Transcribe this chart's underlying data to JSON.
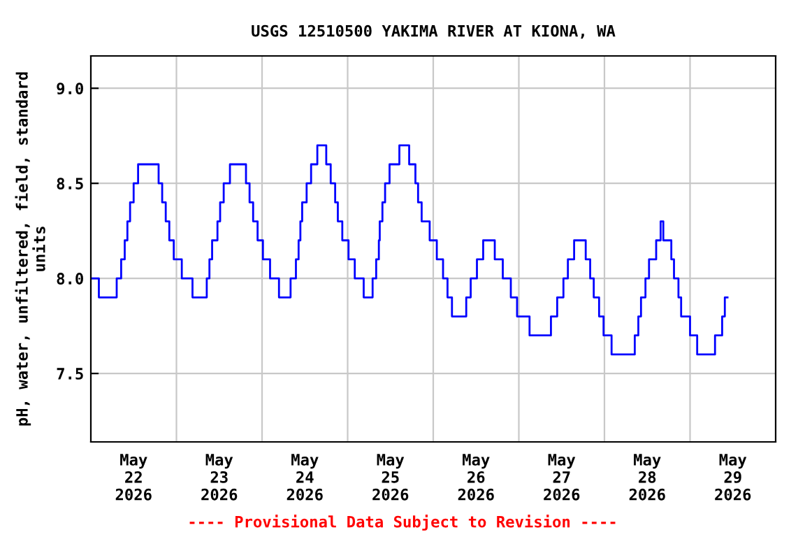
{
  "chart_data": {
    "type": "step",
    "title": "USGS 12510500 YAKIMA RIVER AT KIONA, WA",
    "ylabel": "pH, water, unfiltered, field, standard\nunits",
    "annotations": [
      "---- Provisional Data Subject to Revision ----"
    ],
    "x": [
      "2026-05-22T00:00",
      "2026-05-22T02:15",
      "2026-05-22T07:15",
      "2026-05-22T08:30",
      "2026-05-22T09:30",
      "2026-05-22T10:15",
      "2026-05-22T11:00",
      "2026-05-22T12:00",
      "2026-05-22T13:15",
      "2026-05-22T19:00",
      "2026-05-22T20:00",
      "2026-05-22T21:00",
      "2026-05-22T22:00",
      "2026-05-22T23:15",
      "2026-05-23T01:30",
      "2026-05-23T04:30",
      "2026-05-23T08:30",
      "2026-05-23T09:15",
      "2026-05-23T10:00",
      "2026-05-23T11:30",
      "2026-05-23T12:15",
      "2026-05-23T13:15",
      "2026-05-23T15:00",
      "2026-05-23T19:30",
      "2026-05-23T20:30",
      "2026-05-23T21:30",
      "2026-05-23T22:45",
      "2026-05-24T00:15",
      "2026-05-24T02:15",
      "2026-05-24T04:45",
      "2026-05-24T08:00",
      "2026-05-24T09:30",
      "2026-05-24T10:15",
      "2026-05-24T10:45",
      "2026-05-24T11:15",
      "2026-05-24T12:30",
      "2026-05-24T13:45",
      "2026-05-24T15:30",
      "2026-05-24T18:00",
      "2026-05-24T19:15",
      "2026-05-24T20:30",
      "2026-05-24T21:15",
      "2026-05-24T22:30",
      "2026-05-25T00:15",
      "2026-05-25T02:00",
      "2026-05-25T04:30",
      "2026-05-25T07:00",
      "2026-05-25T08:00",
      "2026-05-25T08:45",
      "2026-05-25T09:00",
      "2026-05-25T09:45",
      "2026-05-25T10:30",
      "2026-05-25T11:45",
      "2026-05-25T14:30",
      "2026-05-25T17:15",
      "2026-05-25T19:00",
      "2026-05-25T19:45",
      "2026-05-25T20:45",
      "2026-05-25T23:00",
      "2026-05-26T01:00",
      "2026-05-26T02:45",
      "2026-05-26T04:00",
      "2026-05-26T05:15",
      "2026-05-26T09:15",
      "2026-05-26T10:30",
      "2026-05-26T12:15",
      "2026-05-26T14:00",
      "2026-05-26T17:15",
      "2026-05-26T19:30",
      "2026-05-26T21:45",
      "2026-05-26T23:30",
      "2026-05-27T03:00",
      "2026-05-27T09:00",
      "2026-05-27T10:45",
      "2026-05-27T12:30",
      "2026-05-27T13:45",
      "2026-05-27T15:30",
      "2026-05-27T18:45",
      "2026-05-27T20:00",
      "2026-05-27T21:00",
      "2026-05-27T22:30",
      "2026-05-27T23:45",
      "2026-05-28T02:00",
      "2026-05-28T08:30",
      "2026-05-28T09:30",
      "2026-05-28T10:15",
      "2026-05-28T11:30",
      "2026-05-28T12:30",
      "2026-05-28T14:30",
      "2026-05-28T15:45",
      "2026-05-28T16:30",
      "2026-05-28T18:45",
      "2026-05-28T19:30",
      "2026-05-28T20:45",
      "2026-05-28T21:30",
      "2026-05-29T00:00",
      "2026-05-29T02:00",
      "2026-05-29T07:00",
      "2026-05-29T09:00",
      "2026-05-29T09:45",
      "2026-05-29T10:30"
    ],
    "series": [
      {
        "color": "#0000ff",
        "values": [
          8.0,
          7.9,
          8.0,
          8.1,
          8.2,
          8.3,
          8.4,
          8.5,
          8.6,
          8.5,
          8.4,
          8.3,
          8.2,
          8.1,
          8.0,
          7.9,
          8.0,
          8.1,
          8.2,
          8.3,
          8.4,
          8.5,
          8.6,
          8.5,
          8.4,
          8.3,
          8.2,
          8.1,
          8.0,
          7.9,
          8.0,
          8.1,
          8.2,
          8.3,
          8.4,
          8.5,
          8.6,
          8.7,
          8.6,
          8.5,
          8.4,
          8.3,
          8.2,
          8.1,
          8.0,
          7.9,
          8.0,
          8.1,
          8.2,
          8.3,
          8.4,
          8.5,
          8.6,
          8.7,
          8.6,
          8.5,
          8.4,
          8.3,
          8.2,
          8.1,
          8.0,
          7.9,
          7.8,
          7.9,
          8.0,
          8.1,
          8.2,
          8.1,
          8.0,
          7.9,
          7.8,
          7.7,
          7.8,
          7.9,
          8.0,
          8.1,
          8.2,
          8.1,
          8.0,
          7.9,
          7.8,
          7.7,
          7.6,
          7.7,
          7.8,
          7.9,
          8.0,
          8.1,
          8.2,
          8.3,
          8.2,
          8.1,
          8.0,
          7.9,
          7.8,
          7.7,
          7.6,
          7.7,
          7.8,
          7.9,
          7.9
        ]
      }
    ],
    "xlim": [
      "2026-05-22T00:00",
      "2026-05-30T00:00"
    ],
    "xticks": [
      {
        "value": "2026-05-22T12:00",
        "label": "May\n22\n2026"
      },
      {
        "value": "2026-05-23T00:00",
        "label": null
      },
      {
        "value": "2026-05-23T12:00",
        "label": "May\n23\n2026"
      },
      {
        "value": "2026-05-24T00:00",
        "label": null
      },
      {
        "value": "2026-05-24T12:00",
        "label": "May\n24\n2026"
      },
      {
        "value": "2026-05-25T00:00",
        "label": null
      },
      {
        "value": "2026-05-25T12:00",
        "label": "May\n25\n2026"
      },
      {
        "value": "2026-05-26T00:00",
        "label": null
      },
      {
        "value": "2026-05-26T12:00",
        "label": "May\n26\n2026"
      },
      {
        "value": "2026-05-27T00:00",
        "label": null
      },
      {
        "value": "2026-05-27T12:00",
        "label": "May\n27\n2026"
      },
      {
        "value": "2026-05-28T00:00",
        "label": null
      },
      {
        "value": "2026-05-28T12:00",
        "label": "May\n28\n2026"
      },
      {
        "value": "2026-05-29T00:00",
        "label": null
      },
      {
        "value": "2026-05-29T12:00",
        "label": "May\n29\n2026"
      }
    ],
    "ylim": [
      7.14,
      9.17
    ],
    "yticks": [
      {
        "value": 7.5,
        "label": "7.5"
      },
      {
        "value": 8.0,
        "label": "8.0"
      },
      {
        "value": 8.5,
        "label": "8.5"
      },
      {
        "value": 9.0,
        "label": "9.0"
      }
    ],
    "grid": true,
    "legend": false,
    "marker": "none",
    "line_style": "solid"
  }
}
